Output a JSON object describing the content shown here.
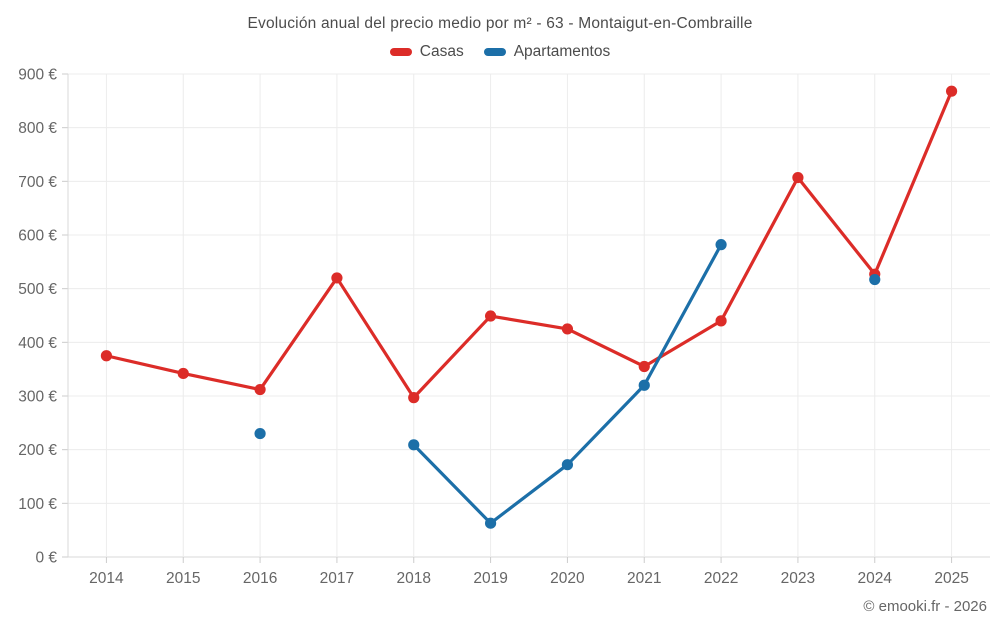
{
  "title": "Evolución anual del precio medio por m² - 63 - Montaigut-en-Combraille",
  "watermark": "© emooki.fr - 2026",
  "legend": {
    "items": [
      {
        "label": "Casas",
        "color": "#dc2c28"
      },
      {
        "label": "Apartamentos",
        "color": "#1c6fa8"
      }
    ]
  },
  "colors": {
    "casas": "#dc2c28",
    "apartamentos": "#1c6fa8",
    "grid": "#ececec",
    "axis": "#d9d9d9",
    "tick": "#cccccc",
    "tick_text": "#666666",
    "title_text": "#4c4c4c"
  },
  "chart_data": {
    "type": "line",
    "title": "Evolución anual del precio medio por m² - 63 - Montaigut-en-Combraille",
    "xlabel": "",
    "ylabel": "",
    "categories": [
      "2014",
      "2015",
      "2016",
      "2017",
      "2018",
      "2019",
      "2020",
      "2021",
      "2022",
      "2023",
      "2024",
      "2025"
    ],
    "series": [
      {
        "name": "Casas",
        "color": "#dc2c28",
        "values": [
          375,
          342,
          312,
          520,
          297,
          449,
          425,
          355,
          440,
          707,
          527,
          868
        ]
      },
      {
        "name": "Apartamentos",
        "color": "#1c6fa8",
        "values": [
          null,
          null,
          230,
          null,
          209,
          63,
          172,
          320,
          582,
          null,
          517,
          null
        ]
      }
    ],
    "ylim": [
      0,
      900
    ],
    "ytick_step": 100,
    "y_tick_labels": [
      "0 €",
      "100 €",
      "200 €",
      "300 €",
      "400 €",
      "500 €",
      "600 €",
      "700 €",
      "800 €",
      "900 €"
    ],
    "grid": true,
    "legend_position": "top",
    "notes": "Apartamentos has isolated points at 2016 and 2024 (no connecting line)."
  }
}
